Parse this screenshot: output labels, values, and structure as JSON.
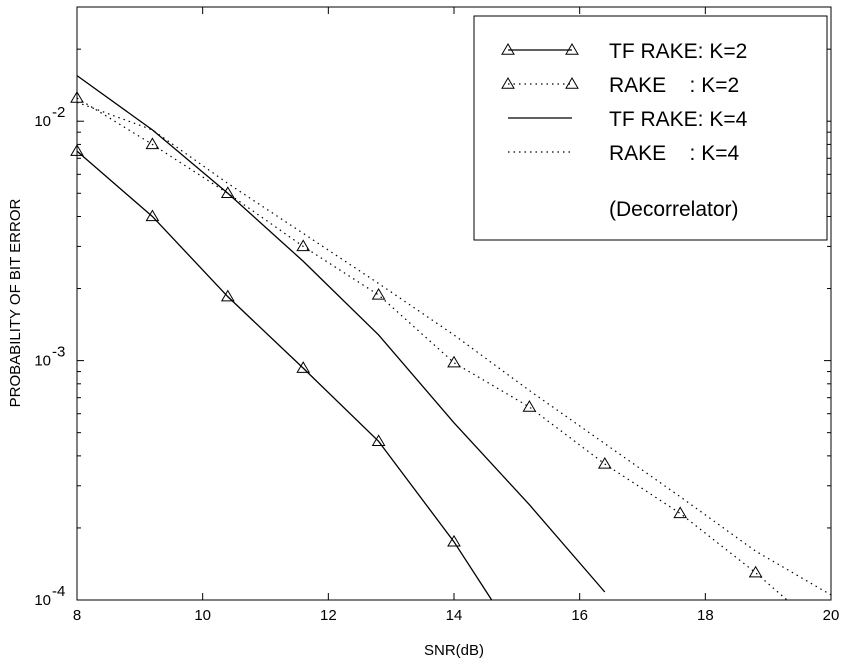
{
  "chart_data": {
    "type": "line",
    "title": "",
    "xlabel": "SNR(dB)",
    "ylabel": "PROBABILITY OF BIT ERROR",
    "xlim": [
      8,
      20
    ],
    "ylim": [
      0.0001,
      0.03
    ],
    "yscale": "log",
    "grid": false,
    "legend_position": "top-right",
    "x_ticks": [
      8,
      10,
      12,
      14,
      16,
      18,
      20
    ],
    "x_tick_labels": [
      "8",
      "10",
      "12",
      "14",
      "16",
      "18",
      "20"
    ],
    "y_ticks": [
      0.0001,
      0.001,
      0.01
    ],
    "y_tick_labels": [
      {
        "base": "10",
        "exp": "-4"
      },
      {
        "base": "10",
        "exp": "-3"
      },
      {
        "base": "10",
        "exp": "-2"
      }
    ],
    "series": [
      {
        "name": "TF RAKE: K=2",
        "line_style": "solid",
        "marker": "triangle",
        "color": "#000000",
        "x": [
          8,
          9.2,
          10.4,
          11.6,
          12.8,
          14,
          14.6
        ],
        "y": [
          0.0075,
          0.004,
          0.00185,
          0.00093,
          0.00046,
          0.000175,
          0.0001
        ]
      },
      {
        "name": "RAKE    : K=2",
        "line_style": "dotted",
        "marker": "triangle",
        "color": "#000000",
        "x": [
          8,
          9.2,
          10.4,
          11.6,
          12.8,
          14,
          15.2,
          16.4,
          17.6,
          18.8,
          19.3
        ],
        "y": [
          0.0125,
          0.008,
          0.005,
          0.003,
          0.00188,
          0.00098,
          0.00064,
          0.00037,
          0.00023,
          0.00013,
          0.0001
        ]
      },
      {
        "name": "TF RAKE: K=4",
        "line_style": "solid",
        "marker": "none",
        "color": "#000000",
        "x": [
          8,
          9.2,
          10.4,
          11.6,
          12.8,
          14,
          15.2,
          16.4
        ],
        "y": [
          0.0155,
          0.0092,
          0.005,
          0.0026,
          0.00128,
          0.00055,
          0.00025,
          0.000108
        ]
      },
      {
        "name": "RAKE    : K=4",
        "line_style": "dotted",
        "marker": "none",
        "color": "#000000",
        "x": [
          8,
          9.2,
          10.4,
          11.6,
          12.8,
          14,
          15.2,
          16.4,
          17.6,
          18.8,
          20
        ],
        "y": [
          0.012,
          0.0092,
          0.0055,
          0.0034,
          0.0021,
          0.00128,
          0.00075,
          0.00045,
          0.00027,
          0.00016,
          0.000105
        ]
      }
    ],
    "annotations": [
      "(Decorrelator)"
    ]
  }
}
